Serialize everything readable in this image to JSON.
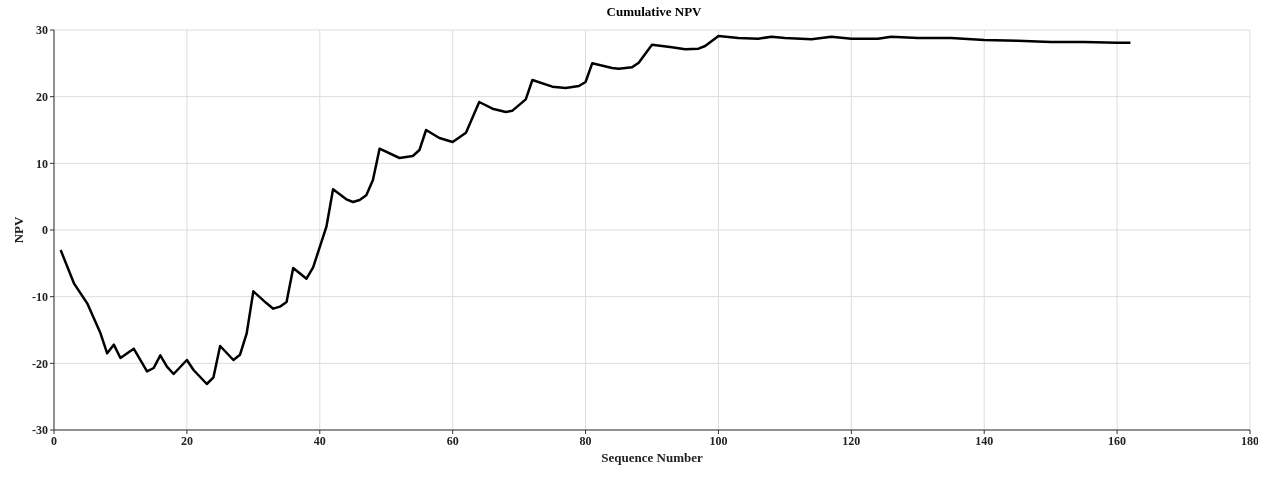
{
  "chart_data": {
    "type": "line",
    "title": "Cumulative NPV",
    "xlabel": "Sequence Number",
    "ylabel": "NPV",
    "xlim": [
      0,
      180
    ],
    "xticks": [
      0,
      20,
      40,
      60,
      80,
      100,
      120,
      140,
      160,
      180
    ],
    "ylim": [
      -30,
      30
    ],
    "yticks": [
      -30,
      -20,
      -10,
      0,
      10,
      20,
      30
    ],
    "grid": true,
    "marker": "none",
    "line_style": "solid",
    "series": [
      {
        "color": "#000000",
        "x": [
          1,
          3,
          5,
          7,
          8,
          9,
          10,
          12,
          14,
          15,
          16,
          17,
          18,
          20,
          21,
          23,
          24,
          25,
          27,
          28,
          29,
          30,
          32,
          33,
          34,
          35,
          36,
          38,
          39,
          41,
          42,
          44,
          45,
          46,
          47,
          48,
          49,
          52,
          54,
          55,
          56,
          58,
          60,
          62,
          64,
          66,
          68,
          69,
          71,
          72,
          75,
          77,
          79,
          80,
          81,
          84,
          85,
          87,
          88,
          90,
          93,
          95,
          97,
          98,
          100,
          103,
          106,
          108,
          110,
          114,
          117,
          120,
          124,
          126,
          130,
          135,
          140,
          145,
          150,
          155,
          160,
          162
        ],
        "values": [
          -3,
          -8,
          -11,
          -15.5,
          -18.5,
          -17.2,
          -19.2,
          -17.8,
          -21.2,
          -20.7,
          -18.8,
          -20.5,
          -21.6,
          -19.5,
          -21,
          -23.1,
          -22.1,
          -17.4,
          -19.5,
          -18.7,
          -15.5,
          -9.2,
          -11,
          -11.8,
          -11.5,
          -10.8,
          -5.7,
          -7.3,
          -5.6,
          0.5,
          6.1,
          4.6,
          4.2,
          4.5,
          5.2,
          7.5,
          12.2,
          10.8,
          11.1,
          12,
          15,
          13.8,
          13.2,
          14.6,
          19.2,
          18.2,
          17.7,
          17.9,
          19.6,
          22.5,
          21.5,
          21.3,
          21.6,
          22.2,
          25,
          24.3,
          24.2,
          24.4,
          25.1,
          27.8,
          27.4,
          27.1,
          27.2,
          27.6,
          29.1,
          28.8,
          28.7,
          29,
          28.8,
          28.6,
          29,
          28.7,
          28.7,
          29,
          28.8,
          28.8,
          28.5,
          28.4,
          28.2,
          28.2,
          28.1,
          28.1
        ]
      }
    ]
  }
}
